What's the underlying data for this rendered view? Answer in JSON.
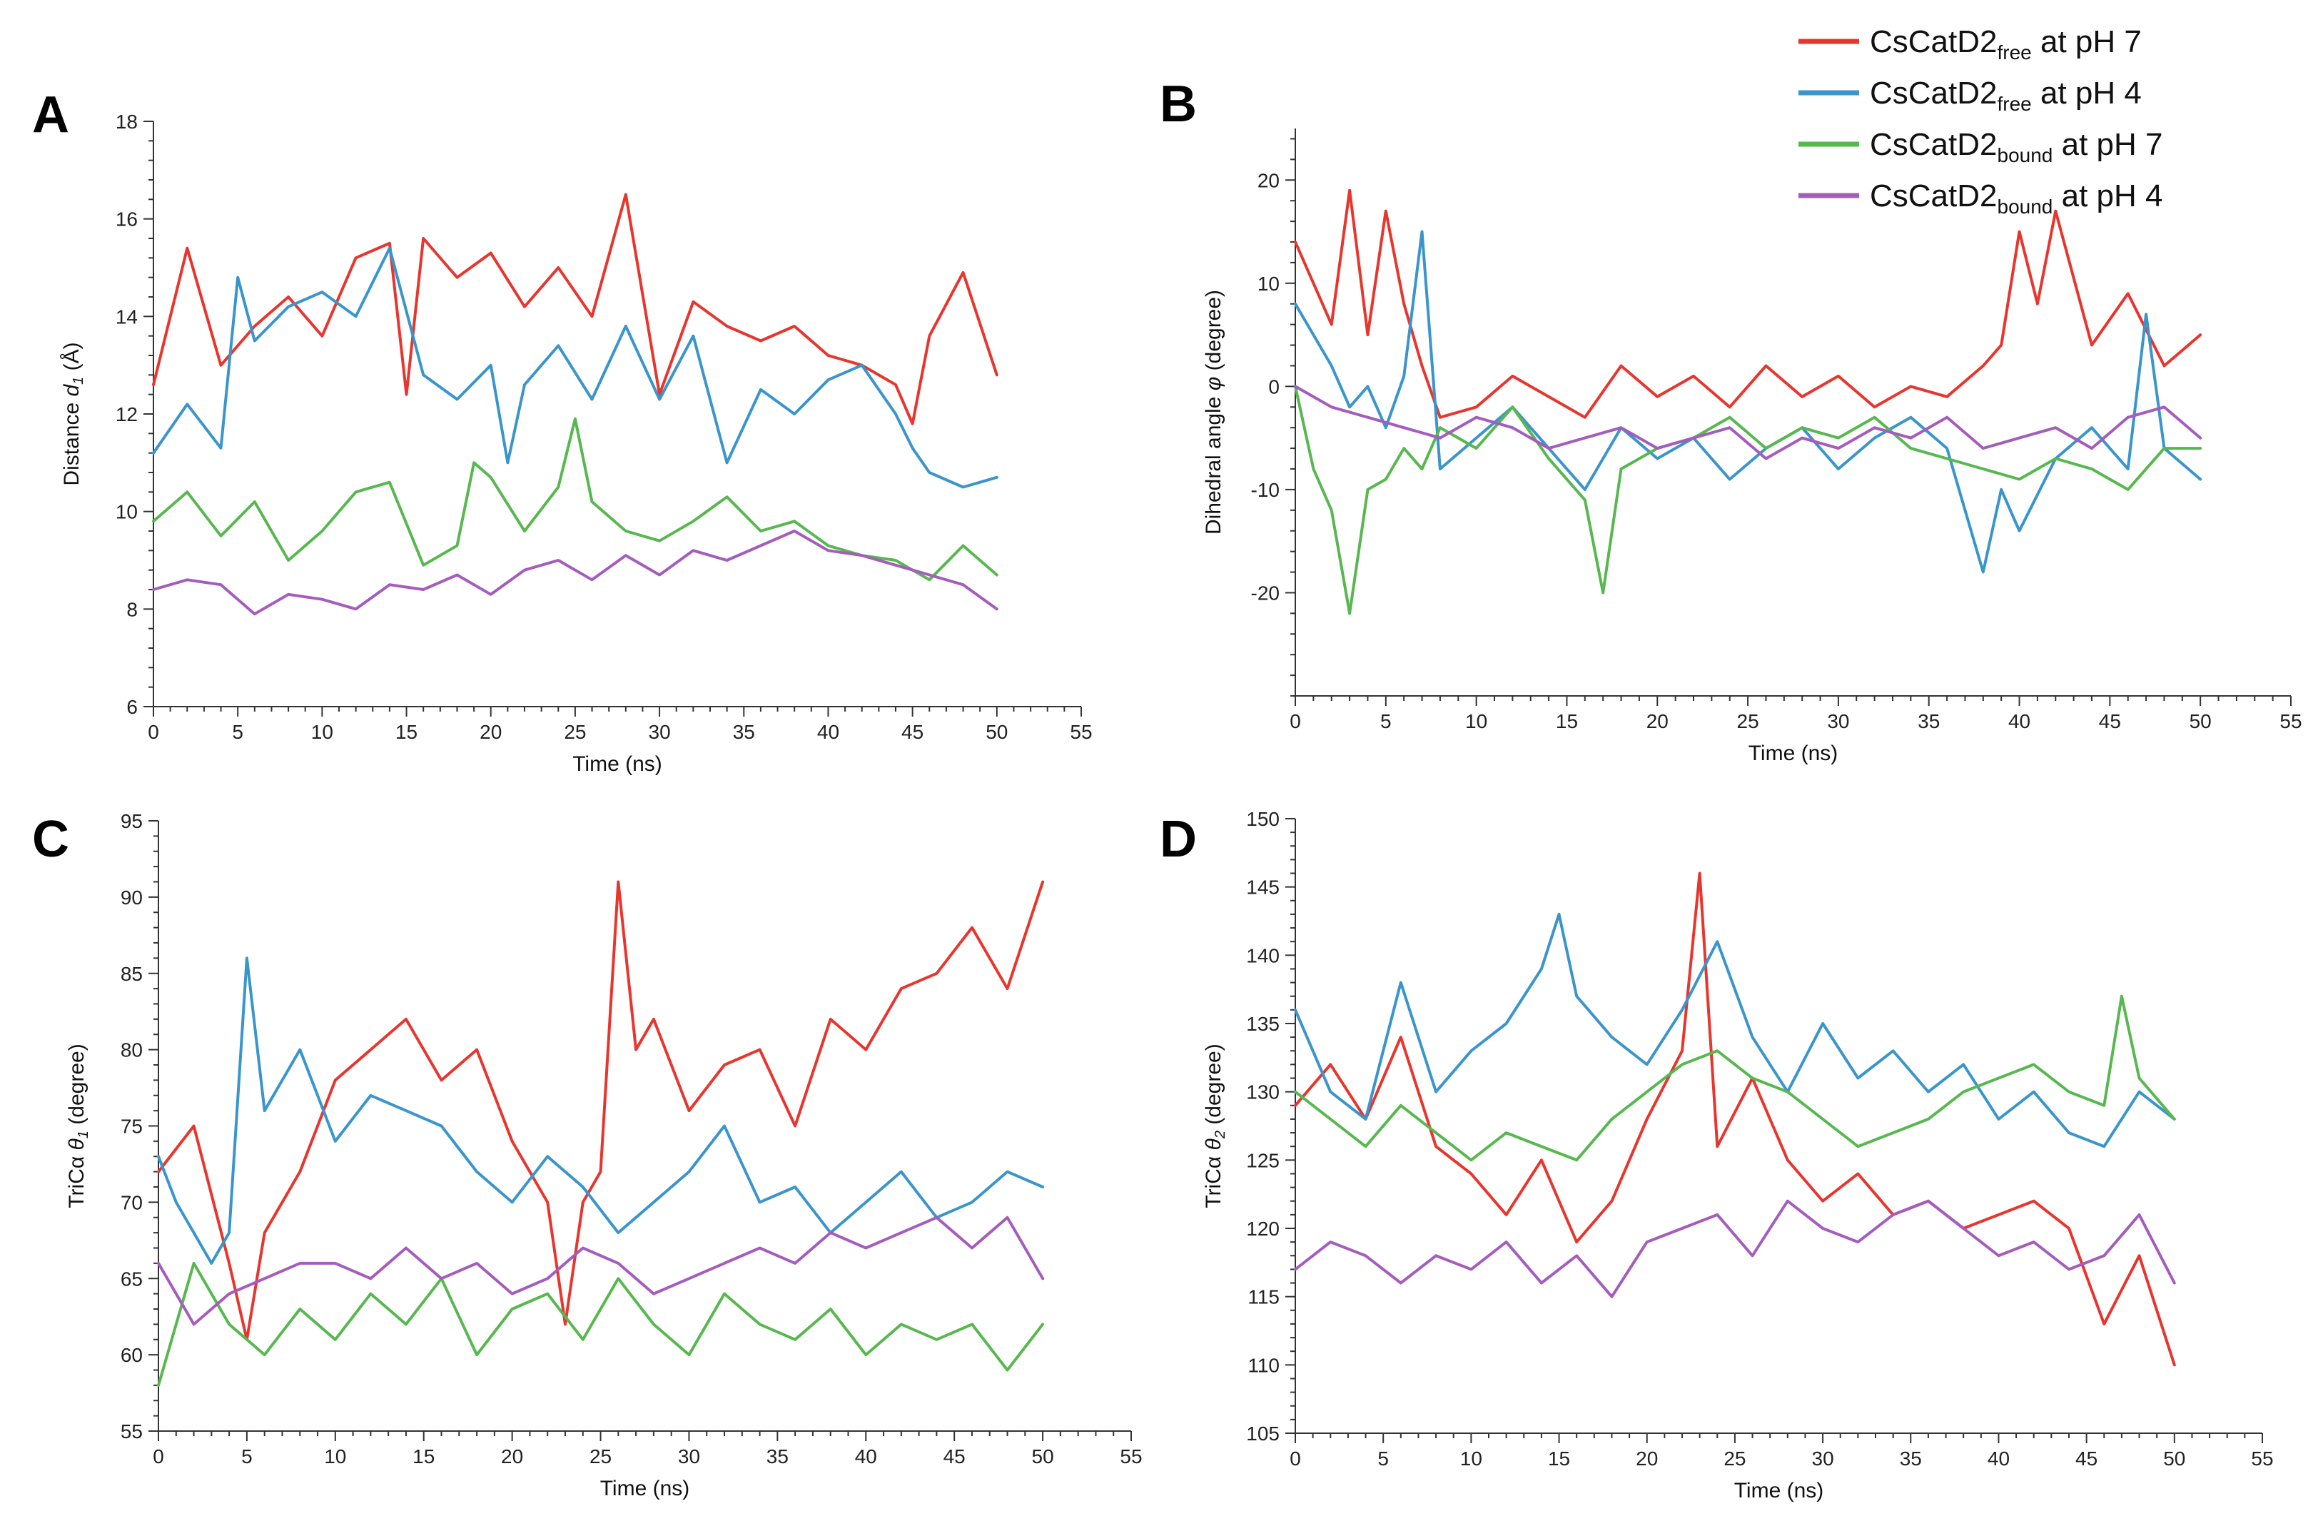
{
  "legend": {
    "entries": [
      {
        "main": "CsCatD2",
        "sub": "free",
        "suffix": " at pH 7",
        "color": "#e8352e"
      },
      {
        "main": "CsCatD2",
        "sub": "free",
        "suffix": " at pH 4",
        "color": "#3a95cc"
      },
      {
        "main": "CsCatD2",
        "sub": "bound",
        "suffix": " at pH 7",
        "color": "#57b84f"
      },
      {
        "main": "CsCatD2",
        "sub": "bound",
        "suffix": " at pH 4",
        "color": "#a45cbd"
      }
    ]
  },
  "chart_data": [
    {
      "panel": "A",
      "type": "line",
      "xlabel": "Time (ns)",
      "ylabel_parts": [
        "Distance ",
        "d",
        "1",
        " (Å)"
      ],
      "xlim": [
        0,
        55
      ],
      "ylim": [
        6,
        18
      ],
      "xticks": [
        0,
        5,
        10,
        15,
        20,
        25,
        30,
        35,
        40,
        45,
        50,
        55
      ],
      "yticks": [
        6,
        8,
        10,
        12,
        14,
        16,
        18
      ],
      "series": [
        {
          "name": "CsCatD2free at pH 7",
          "color": "#e8352e",
          "x": [
            0,
            2,
            4,
            6,
            8,
            10,
            12,
            14,
            15,
            16,
            18,
            20,
            22,
            24,
            26,
            28,
            30,
            32,
            34,
            36,
            38,
            40,
            42,
            44,
            45,
            46,
            48,
            50
          ],
          "y": [
            12.6,
            15.4,
            13.0,
            13.8,
            14.4,
            13.6,
            15.2,
            15.5,
            12.4,
            15.6,
            14.8,
            15.3,
            14.2,
            15.0,
            14.0,
            16.5,
            12.4,
            14.3,
            13.8,
            13.5,
            13.8,
            13.2,
            13.0,
            12.6,
            11.8,
            13.6,
            14.9,
            12.8
          ]
        },
        {
          "name": "CsCatD2free at pH 4",
          "color": "#3a95cc",
          "x": [
            0,
            2,
            4,
            5,
            6,
            8,
            10,
            12,
            14,
            16,
            18,
            20,
            21,
            22,
            24,
            26,
            28,
            30,
            32,
            34,
            36,
            38,
            40,
            42,
            44,
            45,
            46,
            48,
            50
          ],
          "y": [
            11.2,
            12.2,
            11.3,
            14.8,
            13.5,
            14.2,
            14.5,
            14.0,
            15.4,
            12.8,
            12.3,
            13.0,
            11.0,
            12.6,
            13.4,
            12.3,
            13.8,
            12.3,
            13.6,
            11.0,
            12.5,
            12.0,
            12.7,
            13.0,
            12.0,
            11.3,
            10.8,
            10.5,
            10.7
          ]
        },
        {
          "name": "CsCatD2bound at pH 7",
          "color": "#57b84f",
          "x": [
            0,
            2,
            4,
            6,
            8,
            10,
            12,
            14,
            16,
            18,
            19,
            20,
            22,
            24,
            25,
            26,
            28,
            30,
            32,
            34,
            36,
            38,
            40,
            42,
            44,
            46,
            48,
            50
          ],
          "y": [
            9.8,
            10.4,
            9.5,
            10.2,
            9.0,
            9.6,
            10.4,
            10.6,
            8.9,
            9.3,
            11.0,
            10.7,
            9.6,
            10.5,
            11.9,
            10.2,
            9.6,
            9.4,
            9.8,
            10.3,
            9.6,
            9.8,
            9.3,
            9.1,
            9.0,
            8.6,
            9.3,
            8.7
          ]
        },
        {
          "name": "CsCatD2bound at pH 4",
          "color": "#a45cbd",
          "x": [
            0,
            2,
            4,
            6,
            8,
            10,
            12,
            14,
            16,
            18,
            20,
            22,
            24,
            26,
            28,
            30,
            32,
            34,
            36,
            38,
            40,
            42,
            44,
            46,
            48,
            50
          ],
          "y": [
            8.4,
            8.6,
            8.5,
            7.9,
            8.3,
            8.2,
            8.0,
            8.5,
            8.4,
            8.7,
            8.3,
            8.8,
            9.0,
            8.6,
            9.1,
            8.7,
            9.2,
            9.0,
            9.3,
            9.6,
            9.2,
            9.1,
            8.9,
            8.7,
            8.5,
            8.0
          ]
        }
      ]
    },
    {
      "panel": "B",
      "type": "line",
      "xlabel": "Time (ns)",
      "ylabel_parts": [
        "Dihedral angle ",
        "φ",
        "",
        " (degree)"
      ],
      "xlim": [
        0,
        55
      ],
      "ylim": [
        -30,
        25
      ],
      "xticks": [
        0,
        5,
        10,
        15,
        20,
        25,
        30,
        35,
        40,
        45,
        50,
        55
      ],
      "yticks": [
        -20,
        -10,
        0,
        10,
        20
      ],
      "series": [
        {
          "name": "CsCatD2free at pH 7",
          "color": "#e8352e",
          "x": [
            0,
            1,
            2,
            3,
            4,
            5,
            6,
            7,
            8,
            10,
            12,
            14,
            16,
            18,
            20,
            22,
            24,
            26,
            28,
            30,
            32,
            34,
            36,
            38,
            39,
            40,
            41,
            42,
            44,
            46,
            48,
            50
          ],
          "y": [
            14,
            10,
            6,
            19,
            5,
            17,
            8,
            2,
            -3,
            -2,
            1,
            -1,
            -3,
            2,
            -1,
            1,
            -2,
            2,
            -1,
            1,
            -2,
            0,
            -1,
            2,
            4,
            15,
            8,
            17,
            4,
            9,
            2,
            5
          ]
        },
        {
          "name": "CsCatD2free at pH 4",
          "color": "#3a95cc",
          "x": [
            0,
            1,
            2,
            3,
            4,
            5,
            6,
            7,
            8,
            10,
            12,
            14,
            16,
            18,
            20,
            22,
            24,
            26,
            28,
            30,
            32,
            34,
            36,
            38,
            39,
            40,
            42,
            44,
            46,
            47,
            48,
            50
          ],
          "y": [
            8,
            5,
            2,
            -2,
            0,
            -4,
            1,
            15,
            -8,
            -5,
            -2,
            -6,
            -10,
            -4,
            -7,
            -5,
            -9,
            -6,
            -4,
            -8,
            -5,
            -3,
            -6,
            -18,
            -10,
            -14,
            -7,
            -4,
            -8,
            7,
            -6,
            -9
          ]
        },
        {
          "name": "CsCatD2bound at pH 7",
          "color": "#57b84f",
          "x": [
            0,
            1,
            2,
            3,
            4,
            5,
            6,
            7,
            8,
            10,
            12,
            14,
            16,
            17,
            18,
            20,
            22,
            24,
            26,
            28,
            30,
            32,
            34,
            36,
            38,
            40,
            42,
            44,
            46,
            48,
            50
          ],
          "y": [
            0,
            -8,
            -12,
            -22,
            -10,
            -9,
            -6,
            -8,
            -4,
            -6,
            -2,
            -7,
            -11,
            -20,
            -8,
            -6,
            -5,
            -3,
            -6,
            -4,
            -5,
            -3,
            -6,
            -7,
            -8,
            -9,
            -7,
            -8,
            -10,
            -6,
            -6
          ]
        },
        {
          "name": "CsCatD2bound at pH 4",
          "color": "#a45cbd",
          "x": [
            0,
            2,
            4,
            6,
            8,
            10,
            12,
            14,
            16,
            18,
            20,
            22,
            24,
            26,
            28,
            30,
            32,
            34,
            36,
            38,
            40,
            42,
            44,
            46,
            48,
            50
          ],
          "y": [
            0,
            -2,
            -3,
            -4,
            -5,
            -3,
            -4,
            -6,
            -5,
            -4,
            -6,
            -5,
            -4,
            -7,
            -5,
            -6,
            -4,
            -5,
            -3,
            -6,
            -5,
            -4,
            -6,
            -3,
            -2,
            -5
          ]
        }
      ]
    },
    {
      "panel": "C",
      "type": "line",
      "xlabel": "Time (ns)",
      "ylabel_parts": [
        "TriCα ",
        "θ",
        "1",
        " (degree)"
      ],
      "xlim": [
        0,
        55
      ],
      "ylim": [
        55,
        95
      ],
      "xticks": [
        0,
        5,
        10,
        15,
        20,
        25,
        30,
        35,
        40,
        45,
        50,
        55
      ],
      "yticks": [
        55,
        60,
        65,
        70,
        75,
        80,
        85,
        90,
        95
      ],
      "series": [
        {
          "name": "CsCatD2free at pH 7",
          "color": "#e8352e",
          "x": [
            0,
            2,
            4,
            5,
            6,
            8,
            10,
            12,
            14,
            16,
            18,
            20,
            22,
            23,
            24,
            25,
            26,
            27,
            28,
            30,
            32,
            34,
            36,
            38,
            40,
            42,
            44,
            46,
            48,
            50
          ],
          "y": [
            72,
            75,
            66,
            61,
            68,
            72,
            78,
            80,
            82,
            78,
            80,
            74,
            70,
            62,
            70,
            72,
            91,
            80,
            82,
            76,
            79,
            80,
            75,
            82,
            80,
            84,
            85,
            88,
            84,
            91
          ]
        },
        {
          "name": "CsCatD2free at pH 4",
          "color": "#3a95cc",
          "x": [
            0,
            1,
            2,
            3,
            4,
            5,
            6,
            8,
            10,
            12,
            14,
            16,
            18,
            20,
            22,
            24,
            26,
            28,
            30,
            32,
            34,
            36,
            38,
            40,
            42,
            44,
            46,
            48,
            50
          ],
          "y": [
            73,
            70,
            68,
            66,
            68,
            86,
            76,
            80,
            74,
            77,
            76,
            75,
            72,
            70,
            73,
            71,
            68,
            70,
            72,
            75,
            70,
            71,
            68,
            70,
            72,
            69,
            70,
            72,
            71
          ]
        },
        {
          "name": "CsCatD2bound at pH 7",
          "color": "#57b84f",
          "x": [
            0,
            2,
            4,
            6,
            8,
            10,
            12,
            14,
            16,
            18,
            20,
            22,
            24,
            26,
            28,
            30,
            32,
            34,
            36,
            38,
            40,
            42,
            44,
            46,
            48,
            50
          ],
          "y": [
            58,
            66,
            62,
            60,
            63,
            61,
            64,
            62,
            65,
            60,
            63,
            64,
            61,
            65,
            62,
            60,
            64,
            62,
            61,
            63,
            60,
            62,
            61,
            62,
            59,
            62
          ]
        },
        {
          "name": "CsCatD2bound at pH 4",
          "color": "#a45cbd",
          "x": [
            0,
            2,
            4,
            6,
            8,
            10,
            12,
            14,
            16,
            18,
            20,
            22,
            24,
            26,
            28,
            30,
            32,
            34,
            36,
            38,
            40,
            42,
            44,
            46,
            48,
            50
          ],
          "y": [
            66,
            62,
            64,
            65,
            66,
            66,
            65,
            67,
            65,
            66,
            64,
            65,
            67,
            66,
            64,
            65,
            66,
            67,
            66,
            68,
            67,
            68,
            69,
            67,
            69,
            65
          ]
        }
      ]
    },
    {
      "panel": "D",
      "type": "line",
      "xlabel": "Time (ns)",
      "ylabel_parts": [
        "TriCα ",
        "θ",
        "2",
        " (degree)"
      ],
      "xlim": [
        0,
        55
      ],
      "ylim": [
        105,
        150
      ],
      "xticks": [
        0,
        5,
        10,
        15,
        20,
        25,
        30,
        35,
        40,
        45,
        50,
        55
      ],
      "yticks": [
        105,
        110,
        115,
        120,
        125,
        130,
        135,
        140,
        145,
        150
      ],
      "series": [
        {
          "name": "CsCatD2free at pH 7",
          "color": "#e8352e",
          "x": [
            0,
            2,
            4,
            6,
            8,
            10,
            12,
            14,
            16,
            18,
            20,
            22,
            23,
            24,
            26,
            28,
            30,
            32,
            34,
            36,
            38,
            40,
            42,
            44,
            46,
            48,
            50
          ],
          "y": [
            129,
            132,
            128,
            134,
            126,
            124,
            121,
            125,
            119,
            122,
            128,
            133,
            146,
            126,
            131,
            125,
            122,
            124,
            121,
            122,
            120,
            121,
            122,
            120,
            113,
            118,
            110
          ]
        },
        {
          "name": "CsCatD2free at pH 4",
          "color": "#3a95cc",
          "x": [
            0,
            2,
            4,
            6,
            8,
            10,
            12,
            14,
            15,
            16,
            18,
            20,
            22,
            24,
            26,
            28,
            30,
            32,
            34,
            36,
            38,
            40,
            42,
            44,
            46,
            48,
            50
          ],
          "y": [
            136,
            130,
            128,
            138,
            130,
            133,
            135,
            139,
            143,
            137,
            134,
            132,
            136,
            141,
            134,
            130,
            135,
            131,
            133,
            130,
            132,
            128,
            130,
            127,
            126,
            130,
            128
          ]
        },
        {
          "name": "CsCatD2bound at pH 7",
          "color": "#57b84f",
          "x": [
            0,
            2,
            4,
            6,
            8,
            10,
            12,
            14,
            16,
            18,
            20,
            22,
            24,
            26,
            28,
            30,
            32,
            34,
            36,
            38,
            40,
            42,
            44,
            46,
            47,
            48,
            50
          ],
          "y": [
            130,
            128,
            126,
            129,
            127,
            125,
            127,
            126,
            125,
            128,
            130,
            132,
            133,
            131,
            130,
            128,
            126,
            127,
            128,
            130,
            131,
            132,
            130,
            129,
            137,
            131,
            128
          ]
        },
        {
          "name": "CsCatD2bound at pH 4",
          "color": "#a45cbd",
          "x": [
            0,
            2,
            4,
            6,
            8,
            10,
            12,
            14,
            16,
            18,
            20,
            22,
            24,
            26,
            28,
            30,
            32,
            34,
            36,
            38,
            40,
            42,
            44,
            46,
            48,
            50
          ],
          "y": [
            117,
            119,
            118,
            116,
            118,
            117,
            119,
            116,
            118,
            115,
            119,
            120,
            121,
            118,
            122,
            120,
            119,
            121,
            122,
            120,
            118,
            119,
            117,
            118,
            121,
            116
          ]
        }
      ]
    }
  ]
}
